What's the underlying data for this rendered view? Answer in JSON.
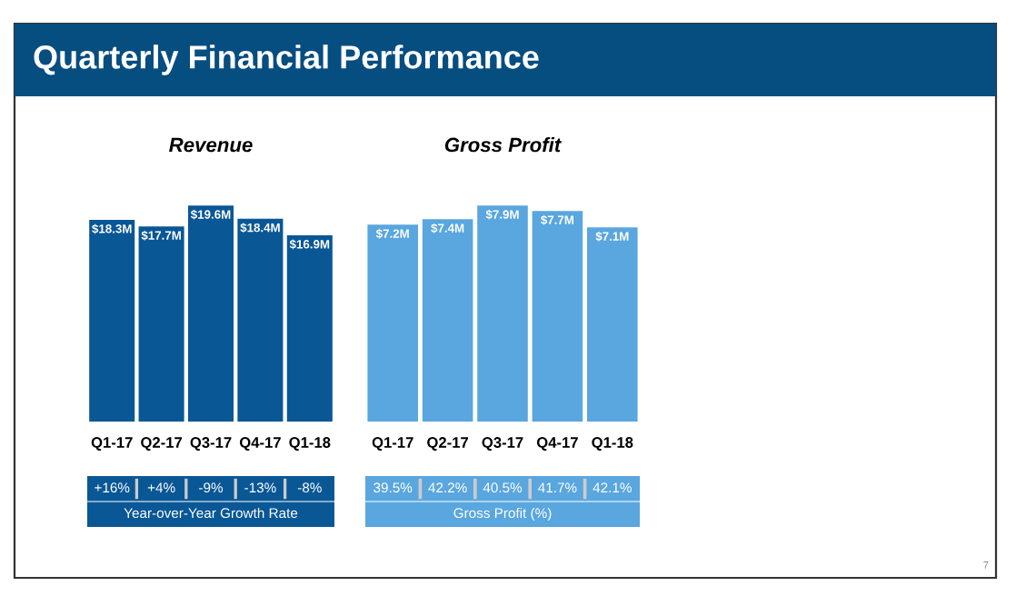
{
  "chart_data": [
    {
      "type": "other",
      "title": "Quarterly Financial Performance",
      "annotations": [
        "7"
      ]
    },
    {
      "type": "bar",
      "title": "Revenue",
      "categories": [
        "Q1-17",
        "Q2-17",
        "Q3-17",
        "Q4-17",
        "Q1-18"
      ],
      "values": [
        18.3,
        17.7,
        19.6,
        18.4,
        16.9
      ],
      "value_labels": [
        "$18.3M",
        "$17.7M",
        "$19.6M",
        "$18.4M",
        "$16.9M"
      ],
      "color": "#0a5796",
      "annotations": [
        "+16%",
        "+4%",
        "-9%",
        "-13%",
        "-8%",
        "Year-over-Year Growth Rate"
      ]
    },
    {
      "type": "bar",
      "title": "Gross Profit",
      "categories": [
        "Q1-17",
        "Q2-17",
        "Q3-17",
        "Q4-17",
        "Q1-18"
      ],
      "values": [
        7.2,
        7.4,
        7.9,
        7.7,
        7.1
      ],
      "value_labels": [
        "$7.2M",
        "$7.4M",
        "$7.9M",
        "$7.7M",
        "$7.1M"
      ],
      "color": "#5aa6df",
      "annotations": [
        "39.5%",
        "42.2%",
        "40.5%",
        "41.7%",
        "42.1%",
        "Gross Profit (%)"
      ]
    }
  ]
}
